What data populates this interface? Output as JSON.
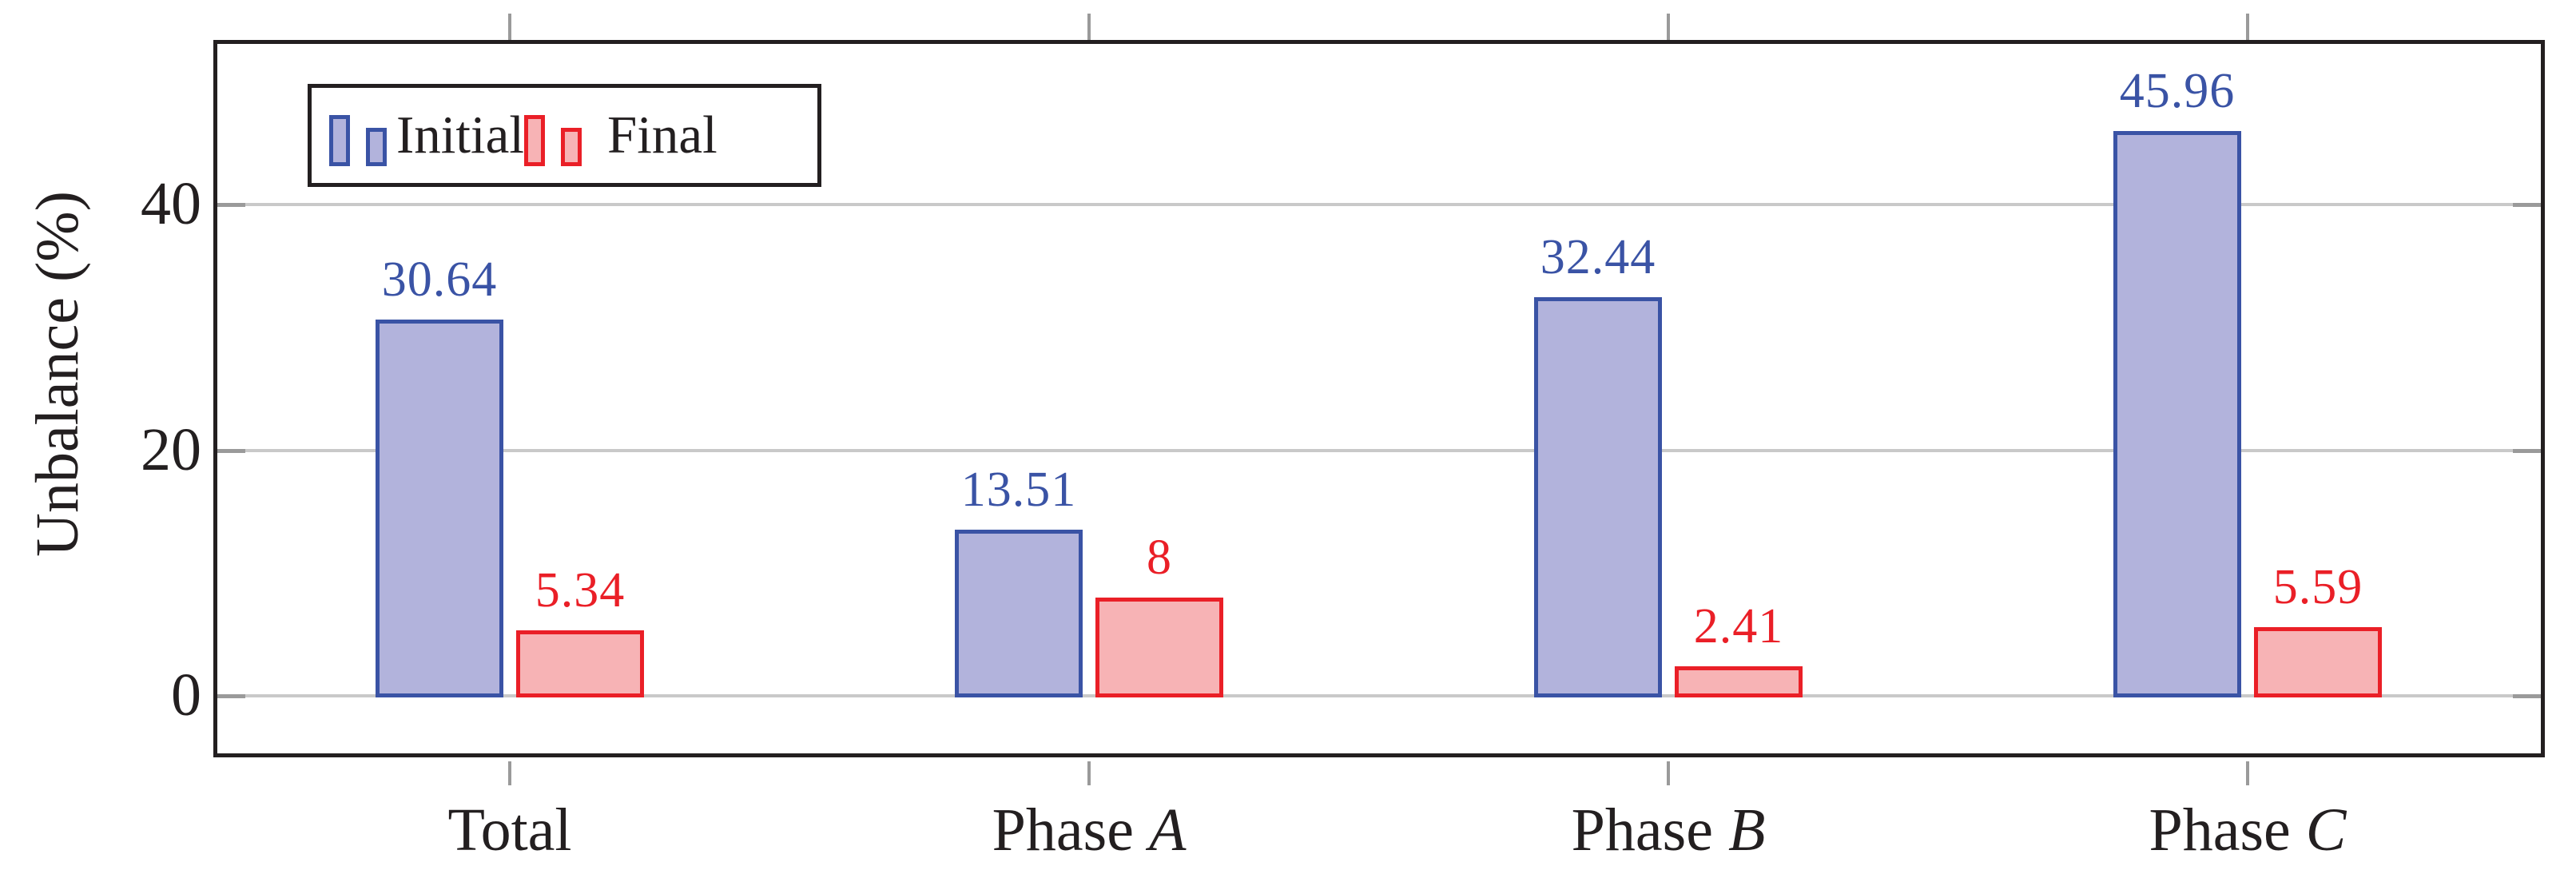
{
  "chart_data": {
    "type": "bar",
    "title": "",
    "ylabel": "Unbalance (%)",
    "xlabel": "",
    "categories": [
      {
        "text": "Total",
        "math": ""
      },
      {
        "text": "Phase",
        "math": "A"
      },
      {
        "text": "Phase",
        "math": "B"
      },
      {
        "text": "Phase",
        "math": "C"
      }
    ],
    "series": [
      {
        "name": "Initial",
        "values": [
          30.64,
          13.51,
          32.44,
          45.96
        ],
        "value_labels": [
          "30.64",
          "13.51",
          "32.44",
          "45.96"
        ],
        "fill": "#b2b3dc",
        "border": "#3a53a5",
        "label_color": "#3a53a5"
      },
      {
        "name": "Final",
        "values": [
          5.34,
          8,
          2.41,
          5.59
        ],
        "value_labels": [
          "5.34",
          "8",
          "2.41",
          "5.59"
        ],
        "fill": "#f7b3b5",
        "border": "#ea1f27",
        "label_color": "#ea1f27"
      }
    ],
    "ytick_labels": [
      "0",
      "20",
      "40"
    ],
    "ytick_values": [
      0,
      20,
      40
    ],
    "ylim": [
      -5,
      53.4
    ],
    "grid": "horizontal-major",
    "legend_position": "top-left"
  },
  "axis_style": {
    "grid_color": "#c9c9c9",
    "tick_color": "#9a9a9a",
    "frame_color": "#231f20",
    "text_color": "#231f20",
    "background": "#ffffff"
  }
}
